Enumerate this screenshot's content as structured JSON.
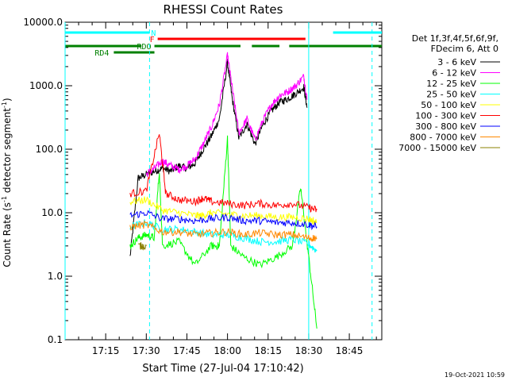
{
  "chart_data": {
    "type": "line",
    "title": "RHESSI Count Rates",
    "xlabel": "Start Time (27-Jul-04 17:10:42)",
    "ylabel_main": "Count Rate (s",
    "ylabel_sup1": "-1",
    "ylabel_mid": " detector segment",
    "ylabel_sup2": "-1",
    "ylabel_end": ")",
    "yscale": "log",
    "ylim": [
      0.1,
      10000
    ],
    "xlim_minutes": [
      17.0,
      18.95
    ],
    "x_ticks": [
      {
        "t": 17.25,
        "label": "17:15"
      },
      {
        "t": 17.5,
        "label": "17:30"
      },
      {
        "t": 17.75,
        "label": "17:45"
      },
      {
        "t": 18.0,
        "label": "18:00"
      },
      {
        "t": 18.25,
        "label": "18:15"
      },
      {
        "t": 18.5,
        "label": "18:30"
      },
      {
        "t": 18.75,
        "label": "18:45"
      }
    ],
    "y_ticks": [
      {
        "v": 0.1,
        "label": "0.1"
      },
      {
        "v": 1,
        "label": "1.0"
      },
      {
        "v": 10,
        "label": "10.0"
      },
      {
        "v": 100,
        "label": "100.0"
      },
      {
        "v": 1000,
        "label": "1000.0"
      },
      {
        "v": 10000,
        "label": "10000.0"
      }
    ],
    "legend_header": [
      "Det 1f,3f,4f,5f,6f,9f,",
      "FDecim 6, Att 0"
    ],
    "legend_position": "right",
    "series": [
      {
        "name": "3 - 6 keV",
        "color": "#000000",
        "points": [
          [
            17.4,
            2
          ],
          [
            17.45,
            35
          ],
          [
            17.5,
            40
          ],
          [
            17.55,
            45
          ],
          [
            17.6,
            50
          ],
          [
            17.65,
            45
          ],
          [
            17.7,
            55
          ],
          [
            17.75,
            50
          ],
          [
            17.8,
            60
          ],
          [
            17.85,
            100
          ],
          [
            17.9,
            160
          ],
          [
            17.95,
            300
          ],
          [
            18.0,
            2300
          ],
          [
            18.03,
            600
          ],
          [
            18.07,
            150
          ],
          [
            18.12,
            250
          ],
          [
            18.17,
            120
          ],
          [
            18.22,
            250
          ],
          [
            18.27,
            400
          ],
          [
            18.32,
            550
          ],
          [
            18.37,
            620
          ],
          [
            18.42,
            750
          ],
          [
            18.47,
            950
          ],
          [
            18.49,
            450
          ]
        ]
      },
      {
        "name": "6 - 12 keV",
        "color": "#ff00ff",
        "points": [
          [
            17.5,
            40
          ],
          [
            17.55,
            50
          ],
          [
            17.6,
            65
          ],
          [
            17.65,
            55
          ],
          [
            17.7,
            48
          ],
          [
            17.75,
            55
          ],
          [
            17.8,
            70
          ],
          [
            17.85,
            120
          ],
          [
            17.9,
            220
          ],
          [
            17.95,
            500
          ],
          [
            18.0,
            3000
          ],
          [
            18.03,
            900
          ],
          [
            18.07,
            180
          ],
          [
            18.12,
            300
          ],
          [
            18.17,
            140
          ],
          [
            18.22,
            290
          ],
          [
            18.27,
            500
          ],
          [
            18.32,
            700
          ],
          [
            18.37,
            800
          ],
          [
            18.42,
            1000
          ],
          [
            18.47,
            1400
          ],
          [
            18.49,
            600
          ]
        ]
      },
      {
        "name": "12 - 25 keV",
        "color": "#00ff00",
        "points": [
          [
            17.4,
            3
          ],
          [
            17.45,
            4
          ],
          [
            17.5,
            4.5
          ],
          [
            17.55,
            4
          ],
          [
            17.58,
            45
          ],
          [
            17.6,
            3
          ],
          [
            17.7,
            3.5
          ],
          [
            17.8,
            1.5
          ],
          [
            17.9,
            3
          ],
          [
            17.95,
            3
          ],
          [
            18.0,
            150
          ],
          [
            18.02,
            3
          ],
          [
            18.1,
            2
          ],
          [
            18.2,
            1.5
          ],
          [
            18.3,
            2
          ],
          [
            18.4,
            3
          ],
          [
            18.45,
            25
          ],
          [
            18.5,
            2
          ],
          [
            18.55,
            0.15
          ]
        ]
      },
      {
        "name": "25 - 50 keV",
        "color": "#00ffff",
        "points": [
          [
            17.4,
            6
          ],
          [
            17.5,
            7
          ],
          [
            17.6,
            5.5
          ],
          [
            17.7,
            5.5
          ],
          [
            17.8,
            5
          ],
          [
            17.9,
            4.5
          ],
          [
            18.0,
            4.5
          ],
          [
            18.1,
            4
          ],
          [
            18.2,
            3.5
          ],
          [
            18.3,
            3.5
          ],
          [
            18.4,
            3.8
          ],
          [
            18.5,
            3.2
          ],
          [
            18.55,
            2.5
          ]
        ]
      },
      {
        "name": "50 - 100 keV",
        "color": "#ffff00",
        "points": [
          [
            17.4,
            15
          ],
          [
            17.5,
            16
          ],
          [
            17.6,
            11
          ],
          [
            17.7,
            10
          ],
          [
            17.8,
            9
          ],
          [
            17.85,
            9
          ],
          [
            17.9,
            10
          ],
          [
            18.0,
            9.5
          ],
          [
            18.1,
            9
          ],
          [
            18.2,
            9
          ],
          [
            18.3,
            8.5
          ],
          [
            18.4,
            8.5
          ],
          [
            18.5,
            8
          ],
          [
            18.55,
            7
          ]
        ]
      },
      {
        "name": "100 - 300 keV",
        "color": "#ff0000",
        "points": [
          [
            17.4,
            20
          ],
          [
            17.5,
            22
          ],
          [
            17.58,
            180
          ],
          [
            17.62,
            20
          ],
          [
            17.7,
            16
          ],
          [
            17.8,
            15
          ],
          [
            17.85,
            17
          ],
          [
            17.9,
            15
          ],
          [
            18.0,
            14
          ],
          [
            18.1,
            13
          ],
          [
            18.2,
            14
          ],
          [
            18.3,
            13
          ],
          [
            18.4,
            14
          ],
          [
            18.5,
            12
          ],
          [
            18.55,
            11
          ]
        ]
      },
      {
        "name": "300 - 800 keV",
        "color": "#0000ff",
        "points": [
          [
            17.4,
            9
          ],
          [
            17.5,
            10
          ],
          [
            17.6,
            8
          ],
          [
            17.7,
            8
          ],
          [
            17.8,
            7.5
          ],
          [
            17.9,
            8
          ],
          [
            18.0,
            8.5
          ],
          [
            18.1,
            7.5
          ],
          [
            18.2,
            7.5
          ],
          [
            18.3,
            7
          ],
          [
            18.4,
            7
          ],
          [
            18.5,
            6.5
          ],
          [
            18.55,
            6
          ]
        ]
      },
      {
        "name": "800 - 7000 keV",
        "color": "#ff8800",
        "points": [
          [
            17.4,
            6
          ],
          [
            17.5,
            6.5
          ],
          [
            17.6,
            5
          ],
          [
            17.7,
            5
          ],
          [
            17.8,
            4.5
          ],
          [
            17.9,
            4.8
          ],
          [
            18.0,
            5
          ],
          [
            18.1,
            4.5
          ],
          [
            18.2,
            4.8
          ],
          [
            18.3,
            4.5
          ],
          [
            18.4,
            4.5
          ],
          [
            18.5,
            4
          ],
          [
            18.55,
            4
          ]
        ]
      },
      {
        "name": "7000 - 15000 keV",
        "color": "#8b8000",
        "points": [
          [
            17.45,
            3
          ],
          [
            17.5,
            3
          ]
        ]
      }
    ],
    "bars": [
      {
        "label": "N",
        "color": "#00ffff",
        "segments": [
          [
            17.0,
            17.52
          ],
          [
            18.65,
            18.95
          ]
        ],
        "level": 0
      },
      {
        "label": "F",
        "color": "#ff0000",
        "segments": [
          [
            17.57,
            18.48
          ]
        ],
        "level": 1
      },
      {
        "label": "RDO",
        "color": "#008000",
        "segments": [
          [
            17.0,
            17.47
          ],
          [
            17.55,
            18.08
          ],
          [
            18.15,
            18.32
          ],
          [
            18.38,
            18.95
          ]
        ],
        "level": 2
      },
      {
        "label": "RD4",
        "color": "#008000",
        "segments": [
          [
            17.3,
            17.55
          ]
        ],
        "level": 3
      }
    ],
    "vlines": [
      {
        "t": 17.0,
        "style": "solid",
        "color": "#00ffff"
      },
      {
        "t": 17.52,
        "style": "dashed",
        "color": "#00ffff"
      },
      {
        "t": 18.5,
        "style": "solid",
        "color": "#00ffff"
      },
      {
        "t": 18.89,
        "style": "dashed",
        "color": "#00ffff"
      }
    ],
    "timestamp": "19-Oct-2021 10:59"
  }
}
